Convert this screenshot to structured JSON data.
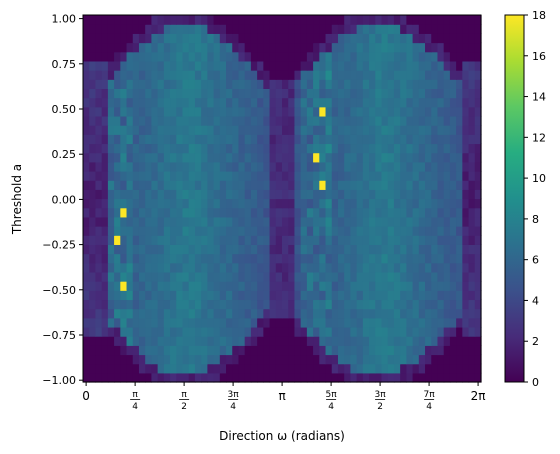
{
  "chart_data": {
    "type": "heatmap",
    "title": "",
    "xlabel": "Direction ω (radians)",
    "ylabel": "Threshold a",
    "xlim": [
      -0.05,
      6.33
    ],
    "ylim": [
      -1.01,
      1.02
    ],
    "x_bins": 64,
    "y_bins": 40,
    "colormap": "viridis",
    "color_range": [
      0,
      18
    ],
    "x_ticks": [
      {
        "value": 0,
        "label": "0"
      },
      {
        "value": 0.7854,
        "label": "π/4"
      },
      {
        "value": 1.5708,
        "label": "π/2"
      },
      {
        "value": 2.3562,
        "label": "3π/4"
      },
      {
        "value": 3.1416,
        "label": "π"
      },
      {
        "value": 3.927,
        "label": "5π/4"
      },
      {
        "value": 4.7124,
        "label": "3π/2"
      },
      {
        "value": 5.4978,
        "label": "7π/4"
      },
      {
        "value": 6.2832,
        "label": "2π"
      }
    ],
    "y_ticks": [
      "1.00",
      "0.75",
      "0.50",
      "0.25",
      "0.00",
      "−0.25",
      "−0.50",
      "−0.75",
      "−1.00"
    ],
    "y_tick_values": [
      1.0,
      0.75,
      0.5,
      0.25,
      0.0,
      -0.25,
      -0.5,
      -0.75,
      -1.0
    ],
    "colorbar_ticks": [
      "0",
      "2",
      "4",
      "6",
      "8",
      "10",
      "12",
      "14",
      "16",
      "18"
    ],
    "colorbar_tick_values": [
      0,
      2,
      4,
      6,
      8,
      10,
      12,
      14,
      16,
      18
    ],
    "max_counts": [
      {
        "x": 0.6,
        "y": -0.06,
        "count": 18
      },
      {
        "x": 0.52,
        "y": -0.22,
        "count": 18
      },
      {
        "x": 0.6,
        "y": -0.47,
        "count": 18
      },
      {
        "x": 3.75,
        "y": 0.47,
        "count": 18
      },
      {
        "x": 3.68,
        "y": 0.22,
        "count": 18
      },
      {
        "x": 3.75,
        "y": 0.06,
        "count": 18
      }
    ]
  }
}
